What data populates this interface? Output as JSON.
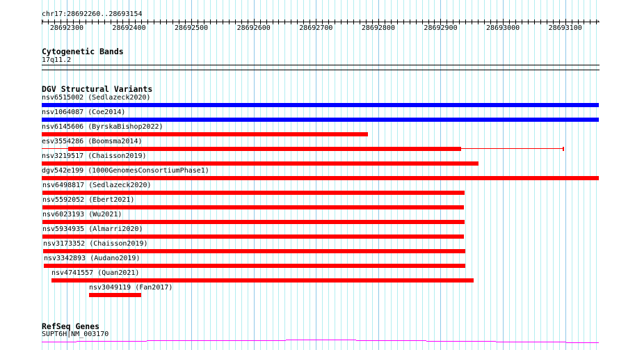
{
  "ruler": {
    "location": "chr17:28692260..28693154",
    "start": 28692260,
    "end": 28693154,
    "tick_labels": [
      "28692300",
      "28692400",
      "28692500",
      "28692600",
      "28692700",
      "28692800",
      "28692900",
      "28693000",
      "28693100"
    ]
  },
  "cytobands": {
    "title": "Cytogenetic Bands",
    "band": "17q11.2"
  },
  "dgv": {
    "title": "DGV Structural Variants",
    "features": [
      {
        "label": "nsv6515002 (Sedlazeck2020)",
        "color": "#0000ff",
        "start": 28692260,
        "end": 28693154
      },
      {
        "label": "nsv1064087 (Coe2014)",
        "color": "#0000ff",
        "start": 28692260,
        "end": 28693154
      },
      {
        "label": "nsv6145606 (ByrskaBishop2022)",
        "color": "#ff0000",
        "start": 28692260,
        "end": 28692783
      },
      {
        "label": "esv3554286 (Boomsma2014)",
        "color": "#ff0000",
        "start": 28692260,
        "end": 28693098,
        "thick_start": 28692302,
        "thick_end": 28692933
      },
      {
        "label": "nsv3219517 (Chaisson2019)",
        "color": "#ff0000",
        "start": 28692260,
        "end": 28692961
      },
      {
        "label": "dgv542e199 (1000GenomesConsortiumPhase1)",
        "color": "#ff0000",
        "start": 28692260,
        "end": 28693154
      },
      {
        "label": "nsv6498817 (Sedlazeck2020)",
        "color": "#ff0000",
        "start": 28692261,
        "end": 28692939
      },
      {
        "label": "nsv5592052 (Ebert2021)",
        "color": "#ff0000",
        "start": 28692261,
        "end": 28692937
      },
      {
        "label": "nsv6023193 (Wu2021)",
        "color": "#ff0000",
        "start": 28692261,
        "end": 28692939
      },
      {
        "label": "nsv5934935 (Almarri2020)",
        "color": "#ff0000",
        "start": 28692261,
        "end": 28692937
      },
      {
        "label": "nsv3173352 (Chaisson2019)",
        "color": "#ff0000",
        "start": 28692262,
        "end": 28692940
      },
      {
        "label": "nsv3342893 (Audano2019)",
        "color": "#ff0000",
        "start": 28692263,
        "end": 28692940
      },
      {
        "label": "nsv4741557 (Quan2021)",
        "color": "#ff0000",
        "start": 28692276,
        "end": 28692953
      },
      {
        "label": "nsv3049119 (Fan2017)",
        "color": "#ff0000",
        "start": 28692336,
        "end": 28692420
      }
    ]
  },
  "refseq": {
    "title": "RefSeq Genes",
    "gene_label": "SUPT6H|NM_003170",
    "color": "#ff00ff"
  }
}
